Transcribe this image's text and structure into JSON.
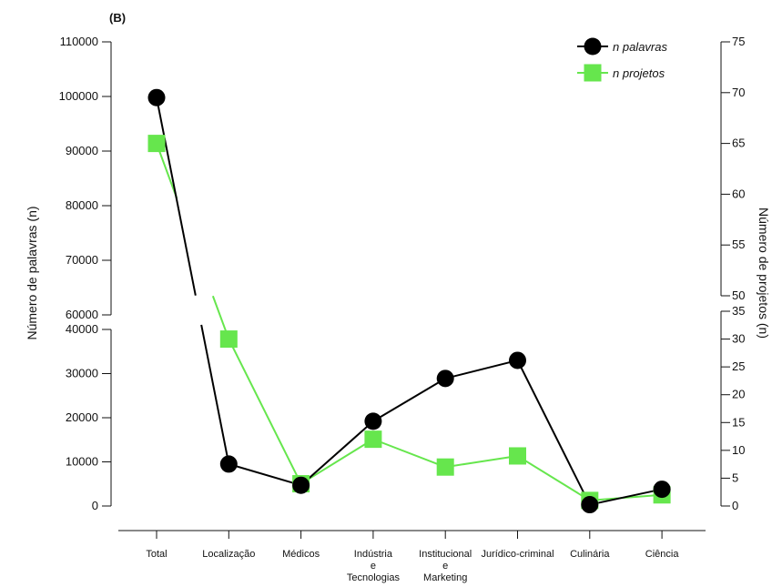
{
  "panel_label": "(B)",
  "colors": {
    "palavras": "#000000",
    "projetos": "#66e64d"
  },
  "chart_data": {
    "type": "line",
    "categories": [
      [
        "Total"
      ],
      [
        "Localização"
      ],
      [
        "Médicos"
      ],
      [
        "Indústria",
        "e",
        "Tecnologias"
      ],
      [
        "Institucional",
        "e",
        "Marketing"
      ],
      [
        "Jurídico-criminal"
      ],
      [
        "Culinária"
      ],
      [
        "Ciência"
      ]
    ],
    "ylabel_left": "Número de palavras (n)",
    "ylabel_right": "Número de projetos (n)",
    "y_left_break": {
      "lower": {
        "range": [
          0,
          40000
        ],
        "ticks": [
          "0",
          "10000",
          "20000",
          "30000",
          "40000"
        ]
      },
      "upper": {
        "range": [
          60000,
          110000
        ],
        "ticks": [
          "60000",
          "70000",
          "80000",
          "90000",
          "100000",
          "110000"
        ]
      }
    },
    "y_right_break": {
      "lower": {
        "range": [
          0,
          35
        ],
        "ticks": [
          "0",
          "5",
          "10",
          "15",
          "20",
          "25",
          "30",
          "35"
        ]
      },
      "upper": {
        "range": [
          50,
          75
        ],
        "ticks": [
          "50",
          "55",
          "60",
          "65",
          "70",
          "75"
        ]
      }
    },
    "series": [
      {
        "name": "n palavras",
        "axis": "left",
        "marker": "circle",
        "values": [
          99800,
          9500,
          4700,
          19200,
          28900,
          33000,
          300,
          3800
        ]
      },
      {
        "name": "n projetos",
        "axis": "right",
        "marker": "square",
        "values": [
          65,
          30,
          4,
          12,
          7,
          9,
          1,
          2
        ]
      }
    ],
    "legend_position": "top-right",
    "grid": false
  }
}
